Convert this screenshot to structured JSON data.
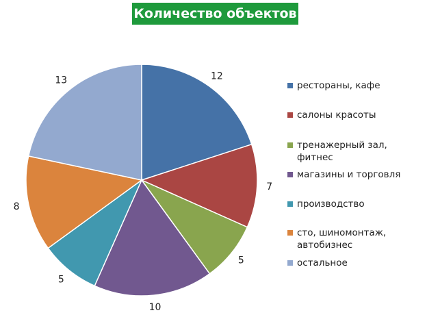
{
  "chart_data": {
    "type": "pie",
    "title": "Количество объектов",
    "categories": [
      "рестораны, кафе",
      "салоны красоты",
      "тренажерный зал, фитнес",
      "магазины и торговля",
      "производство",
      "сто, шиномонтаж, автобизнес",
      "остальное"
    ],
    "values": [
      12,
      7,
      5,
      10,
      5,
      8,
      13
    ],
    "colors": [
      "#4572a7",
      "#aa4643",
      "#89a54e",
      "#71588f",
      "#4198af",
      "#db843d",
      "#93a9cf"
    ],
    "data_labels": [
      "12",
      "7",
      "5",
      "10",
      "5",
      "8",
      "13"
    ],
    "legend_position": "right",
    "start_angle": "top (12 o'clock), clockwise"
  }
}
